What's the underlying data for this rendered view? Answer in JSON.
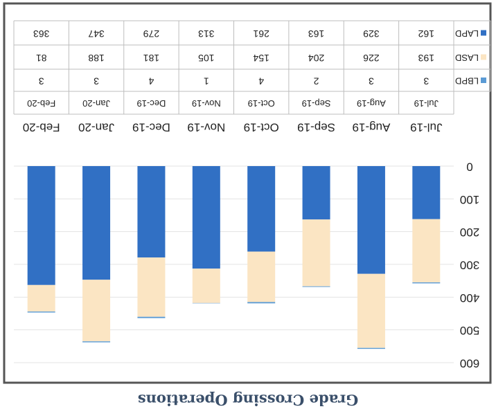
{
  "chart_data": {
    "type": "bar",
    "stacked": true,
    "title": "Grade Crossing Operations",
    "categories": [
      "Jul-19",
      "Aug-19",
      "Sep-19",
      "Oct-19",
      "Nov-19",
      "Dec-19",
      "Jan-20",
      "Feb-20"
    ],
    "series": [
      {
        "name": "LAPD",
        "color": "#3170c4",
        "values": [
          162,
          329,
          163,
          261,
          313,
          279,
          347,
          363
        ]
      },
      {
        "name": "LASD",
        "color": "#fbe5c3",
        "values": [
          193,
          226,
          204,
          154,
          105,
          181,
          188,
          81
        ]
      },
      {
        "name": "LBPD",
        "color": "#5b9bd5",
        "values": [
          3,
          3,
          2,
          4,
          1,
          4,
          3,
          3
        ]
      }
    ],
    "ylim": [
      0,
      600
    ],
    "yticks": [
      0,
      100,
      200,
      300,
      400,
      500,
      600
    ],
    "grid": true
  }
}
